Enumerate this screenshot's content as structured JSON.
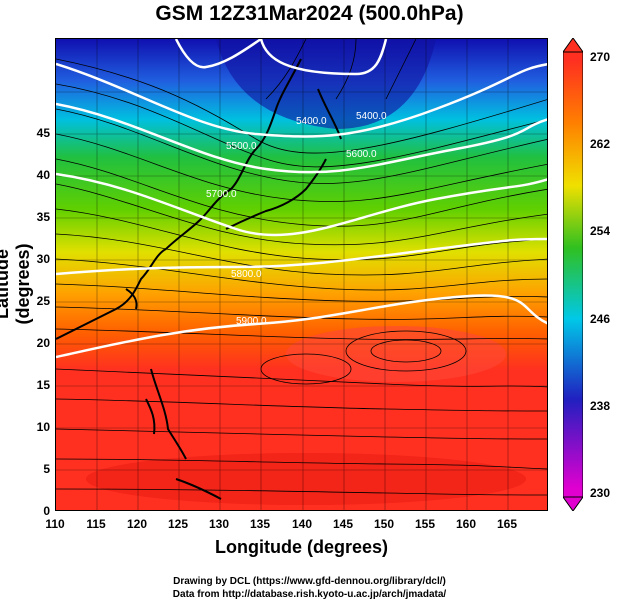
{
  "title": "GSM 12Z31Mar2024 (500.0hPa)",
  "x_axis": {
    "label": "Longitude (degrees)",
    "ticks": [
      "110",
      "115",
      "120",
      "125",
      "130",
      "135",
      "140",
      "145",
      "150",
      "155",
      "160",
      "165"
    ]
  },
  "y_axis": {
    "label": "Latitude (degrees)",
    "ticks": [
      "0",
      "5",
      "10",
      "15",
      "20",
      "25",
      "30",
      "35",
      "40",
      "45"
    ]
  },
  "colorbar": {
    "labels": [
      "230",
      "238",
      "246",
      "254",
      "262",
      "270"
    ],
    "colors": [
      "#e000d0",
      "#2020c0",
      "#00c8e8",
      "#30c020",
      "#f0e000",
      "#ff8000",
      "#ff3020"
    ]
  },
  "contour_labels": [
    "5400.0",
    "5400.0",
    "5500.0",
    "5600.0",
    "5700.0",
    "5800.0",
    "5900.0"
  ],
  "credits": {
    "line1": "Drawing by DCL (https://www.gfd-dennou.org/library/dcl/)",
    "line2": "Data from http://database.rish.kyoto-u.ac.jp/arch/jmadata/"
  }
}
